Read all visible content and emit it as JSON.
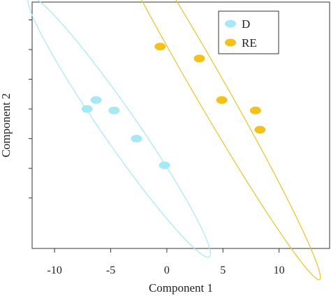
{
  "chart_data": {
    "type": "scatter",
    "title": "",
    "xlabel": "Component 1",
    "ylabel": "Component 2",
    "xlim": [
      -12,
      14.5
    ],
    "ylim": [
      -4.7,
      3.6
    ],
    "x_ticks": [
      -10,
      -5,
      0,
      5,
      10
    ],
    "x_tick_labels": [
      "-10",
      "-5",
      "0",
      "5",
      "10"
    ],
    "y_ticks": [
      -3,
      -2,
      -1,
      0,
      1,
      2,
      3
    ],
    "y_tick_labels": [
      "",
      "",
      "",
      "",
      "",
      "",
      ""
    ],
    "grid": false,
    "legend_position": "top-right",
    "series": [
      {
        "name": "D",
        "color": "#a6e8f4",
        "ellipse_color": "#a6e8f4",
        "x": [
          -6.3,
          -7.1,
          -4.7,
          -2.7,
          -0.2
        ],
        "y": [
          0.3,
          0.0,
          -0.05,
          -1.0,
          -1.9
        ],
        "ellipse": {
          "cx": -4.25,
          "cy": -0.6,
          "rx": 9.2,
          "ry": 0.9,
          "angle_deg": -28
        }
      },
      {
        "name": "RE",
        "color": "#f2c21b",
        "ellipse_color": "#e8c229",
        "x": [
          -0.6,
          2.9,
          4.9,
          7.9,
          8.3
        ],
        "y": [
          2.1,
          1.7,
          0.3,
          -0.05,
          -0.7
        ],
        "ellipse": {
          "cx": 3.1,
          "cy": 1.15,
          "rx": 12.6,
          "ry": 0.9,
          "angle_deg": -33
        }
      }
    ]
  }
}
